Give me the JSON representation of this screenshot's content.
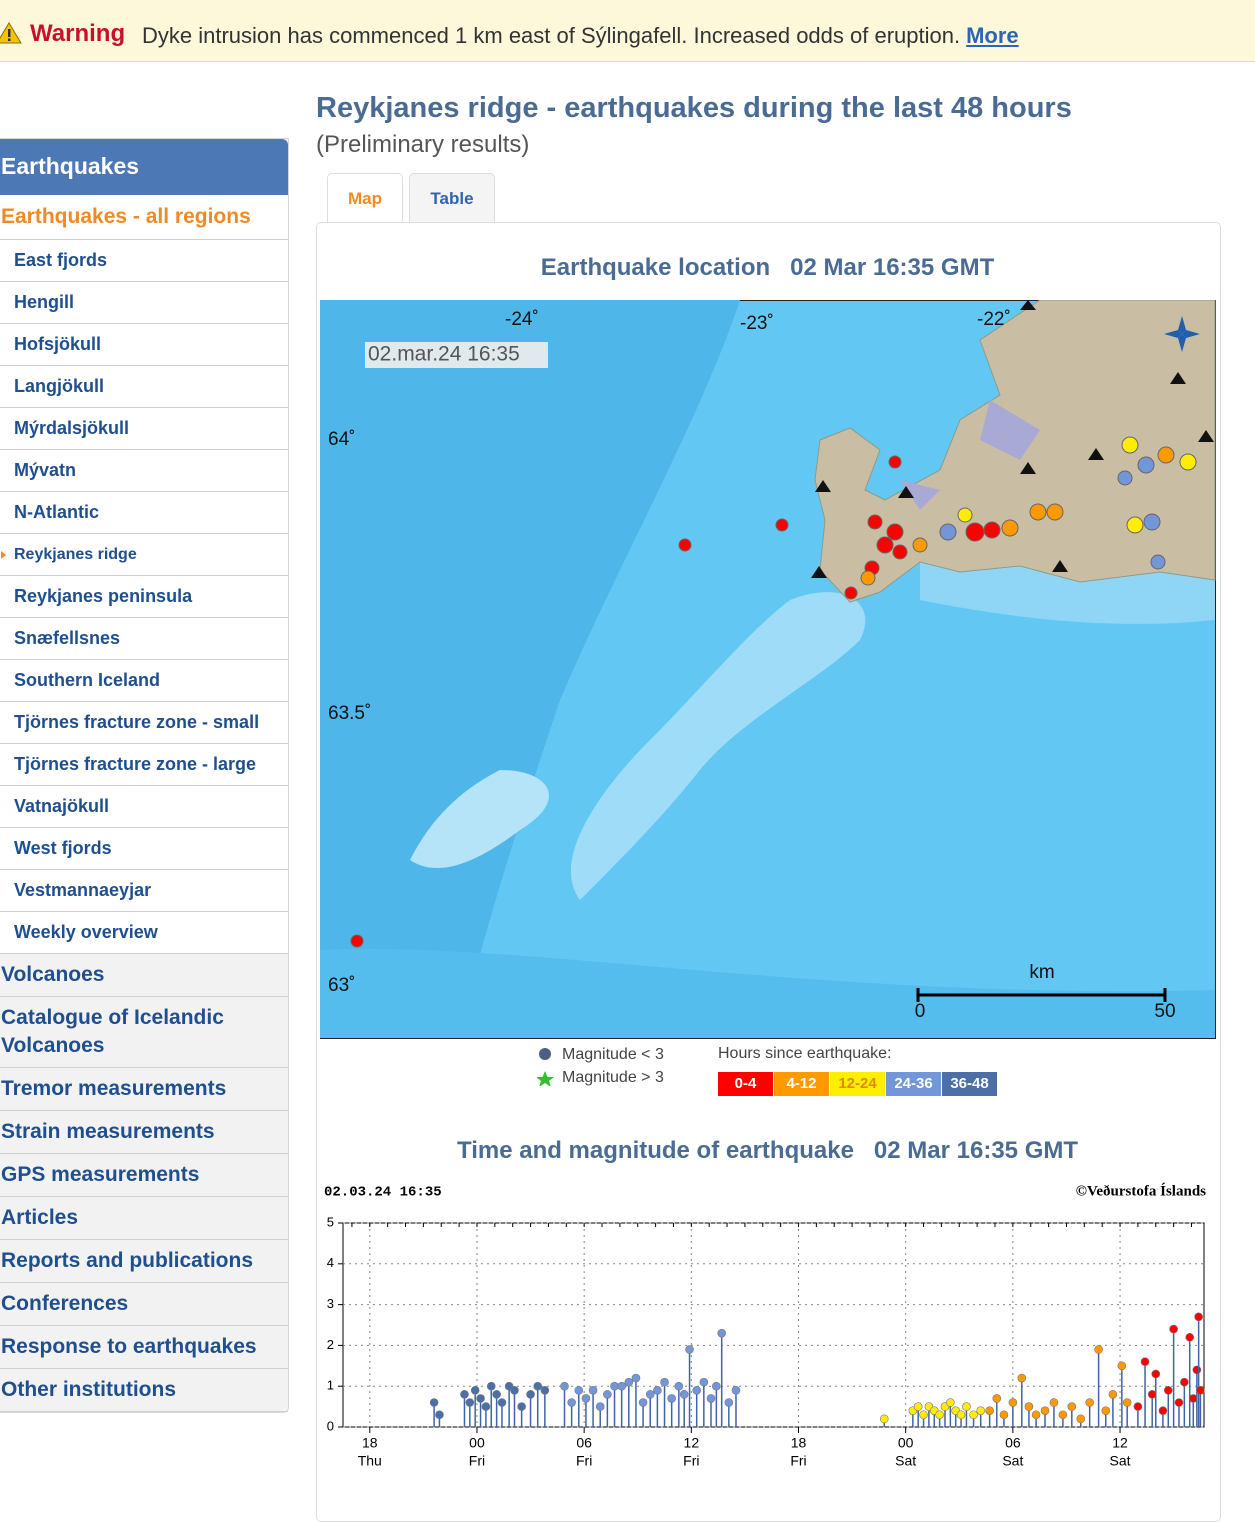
{
  "warning": {
    "label": "Warning",
    "text": "Dyke intrusion has commenced 1 km east of Sýlingafell. Increased odds of eruption.",
    "link": "More"
  },
  "page": {
    "title": "Reykjanes ridge - earthquakes during the last 48 hours",
    "subtitle": "(Preliminary results)"
  },
  "tabs": [
    "Map",
    "Table"
  ],
  "sidebar": {
    "heading": "Earthquakes",
    "all": "Earthquakes - all regions",
    "regions": [
      "East fjords",
      "Hengill",
      "Hofsjökull",
      "Langjökull",
      "Mýrdalsjökull",
      "Mývatn",
      "N-Atlantic",
      "Reykjanes ridge",
      "Reykjanes peninsula",
      "Snæfellsnes",
      "Southern Iceland",
      "Tjörnes fracture zone - small",
      "Tjörnes fracture zone - large",
      "Vatnajökull",
      "West fjords",
      "Vestmannaeyjar",
      "Weekly overview"
    ],
    "sections": [
      "Volcanoes",
      "Catalogue of Icelandic Volcanoes",
      "Tremor measurements",
      "Strain measurements",
      "GPS measurements",
      "Articles",
      "Reports and publications",
      "Conferences",
      "Response to earthquakes",
      "Other institutions"
    ]
  },
  "map": {
    "title": "Earthquake location   02 Mar 16:35 GMT",
    "timestamp": "02.mar.24  16:35",
    "lon_labels": [
      "-24˚",
      "-23˚",
      "-22˚"
    ],
    "lat_labels": [
      "64˚",
      "63.5˚",
      "63˚"
    ],
    "scale": {
      "unit": "km",
      "start": "0",
      "end": "50"
    }
  },
  "legend": {
    "magnitude": [
      "Magnitude < 3",
      "Magnitude > 3"
    ],
    "hours_title": "Hours since earthquake:"
  },
  "chart_data": {
    "type": "stem",
    "title": "Time and magnitude of earthquake   02 Mar 16:35 GMT",
    "stamp": "02.03.24 16:35",
    "credit": "©Veðurstofa Íslands",
    "xlim": [
      16.5,
      64.7
    ],
    "ylim": [
      0,
      5
    ],
    "yticks": [
      0,
      1,
      2,
      3,
      4,
      5
    ],
    "grid": true,
    "xticks": [
      {
        "value": 18,
        "label": "18"
      },
      {
        "value": 24,
        "label": "00"
      },
      {
        "value": 30,
        "label": "06"
      },
      {
        "value": 36,
        "label": "12"
      },
      {
        "value": 42,
        "label": "18"
      },
      {
        "value": 48,
        "label": "00"
      },
      {
        "value": 54,
        "label": "06"
      },
      {
        "value": 60,
        "label": "12"
      }
    ],
    "xtick_days": [
      "Thu",
      "Fri",
      "Fri",
      "Fri",
      "Fri",
      "Sat",
      "Sat",
      "Sat"
    ],
    "series": [
      {
        "name": "0-4",
        "color": "#ff0000",
        "x": [
          61.0,
          61.4,
          61.8,
          62.0,
          62.4,
          62.7,
          63.0,
          63.3,
          63.6,
          63.9,
          64.1,
          64.3,
          64.4,
          64.5
        ],
        "values": [
          0.5,
          1.6,
          0.8,
          1.3,
          0.4,
          0.9,
          2.4,
          0.6,
          1.1,
          2.2,
          0.7,
          1.4,
          2.7,
          0.9
        ]
      },
      {
        "name": "4-12",
        "color": "#ff9900",
        "x": [
          52.7,
          53.1,
          53.5,
          54.0,
          54.5,
          54.9,
          55.3,
          55.8,
          56.3,
          56.8,
          57.3,
          57.8,
          58.3,
          58.8,
          59.2,
          59.6,
          60.1,
          60.4
        ],
        "values": [
          0.4,
          0.7,
          0.3,
          0.6,
          1.2,
          0.5,
          0.3,
          0.4,
          0.6,
          0.3,
          0.5,
          0.2,
          0.6,
          1.9,
          0.4,
          0.8,
          1.5,
          0.6
        ]
      },
      {
        "name": "12-24",
        "color": "#ffee00",
        "x": [
          46.8,
          48.4,
          48.7,
          49.0,
          49.3,
          49.6,
          49.9,
          50.2,
          50.5,
          50.8,
          51.1,
          51.4,
          51.8,
          52.2
        ],
        "values": [
          0.2,
          0.4,
          0.5,
          0.3,
          0.5,
          0.4,
          0.3,
          0.5,
          0.6,
          0.4,
          0.3,
          0.5,
          0.3,
          0.4
        ]
      },
      {
        "name": "24-36",
        "color": "#7396d8",
        "x": [
          28.9,
          29.3,
          29.7,
          30.1,
          30.5,
          30.9,
          31.3,
          31.7,
          32.1,
          32.5,
          32.9,
          33.3,
          33.7,
          34.1,
          34.5,
          34.9,
          35.3,
          35.6,
          35.9,
          36.3,
          36.7,
          37.1,
          37.4,
          37.7,
          38.1,
          38.5
        ],
        "values": [
          1.0,
          0.6,
          0.9,
          0.7,
          0.9,
          0.5,
          0.8,
          1.0,
          1.0,
          1.1,
          1.2,
          0.6,
          0.8,
          0.9,
          1.1,
          0.7,
          1.0,
          0.8,
          1.9,
          0.9,
          1.1,
          0.7,
          1.0,
          2.3,
          0.6,
          0.9
        ]
      },
      {
        "name": "36-48",
        "color": "#4c6fa8",
        "x": [
          21.6,
          21.9,
          23.3,
          23.6,
          23.9,
          24.2,
          24.5,
          24.8,
          25.1,
          25.4,
          25.8,
          26.1,
          26.5,
          27.0,
          27.4,
          27.8
        ],
        "values": [
          0.6,
          0.3,
          0.8,
          0.6,
          0.9,
          0.7,
          0.5,
          1.0,
          0.8,
          0.6,
          1.0,
          0.9,
          0.5,
          0.8,
          1.0,
          0.9
        ]
      }
    ]
  }
}
